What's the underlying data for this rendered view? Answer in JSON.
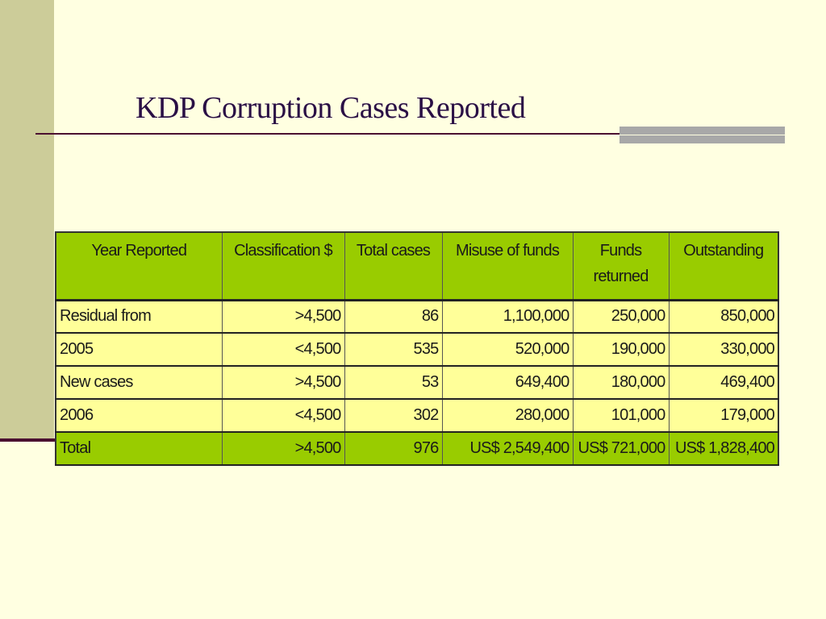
{
  "slide": {
    "title": "KDP Corruption Cases Reported"
  },
  "colors": {
    "background": "#FFFFE1",
    "left_band": "#CCCC99",
    "title_text": "#2A0F45",
    "rule": "#4B1030",
    "accent_bars": "#A8A8A8",
    "table_header": "#99CC00",
    "table_body": "#FFFF99"
  },
  "table": {
    "headers": [
      "Year Reported",
      "Classification $",
      "Total cases",
      "Misuse of funds",
      "Funds returned",
      "Outstanding"
    ],
    "rows": [
      [
        "Residual from",
        ">4,500",
        "86",
        "1,100,000",
        "250,000",
        "850,000"
      ],
      [
        "2005",
        "<4,500",
        "535",
        "520,000",
        "190,000",
        "330,000"
      ],
      [
        "New cases",
        ">4,500",
        "53",
        "649,400",
        "180,000",
        "469,400"
      ],
      [
        "2006",
        "<4,500",
        "302",
        "280,000",
        "101,000",
        "179,000"
      ]
    ],
    "total": [
      "Total",
      ">4,500",
      "976",
      "US$ 2,549,400",
      "US$ 721,000",
      "US$ 1,828,400"
    ]
  }
}
